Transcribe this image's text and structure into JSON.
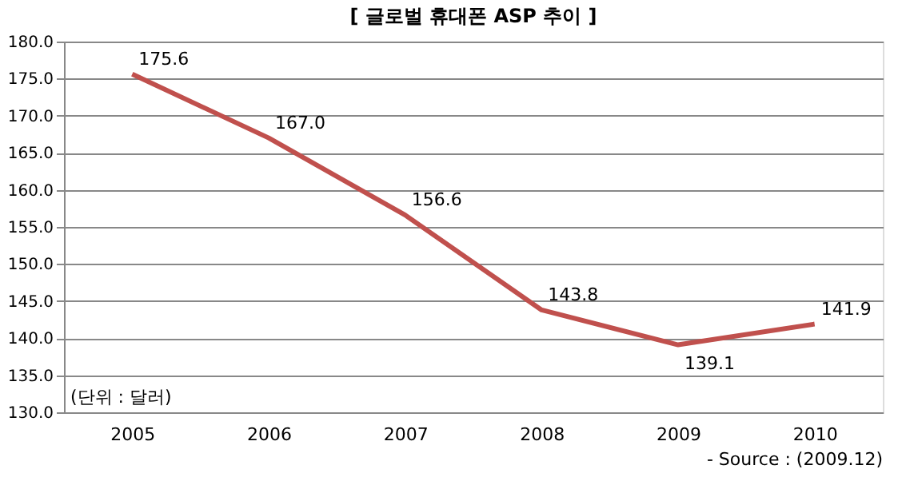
{
  "chart_data": {
    "type": "line",
    "title": "[ 글로벌 휴대폰 ASP 추이 ]",
    "categories": [
      "2005",
      "2006",
      "2007",
      "2008",
      "2009",
      "2010"
    ],
    "series": [
      {
        "color": "#c0504d",
        "values": [
          175.6,
          167.0,
          156.6,
          143.8,
          139.1,
          141.9
        ],
        "value_labels": [
          "175.6",
          "167.0",
          "156.6",
          "143.8",
          "139.1",
          "141.9"
        ]
      }
    ],
    "ylim": [
      130,
      180
    ],
    "yticks": [
      {
        "value": 130,
        "label": "130.0"
      },
      {
        "value": 135,
        "label": "135.0"
      },
      {
        "value": 140,
        "label": "140.0"
      },
      {
        "value": 145,
        "label": "145.0"
      },
      {
        "value": 150,
        "label": "150.0"
      },
      {
        "value": 155,
        "label": "155.0"
      },
      {
        "value": 160,
        "label": "160.0"
      },
      {
        "value": 165,
        "label": "165.0"
      },
      {
        "value": 170,
        "label": "170.0"
      },
      {
        "value": 175,
        "label": "175.0"
      },
      {
        "value": 180,
        "label": "180.0"
      }
    ],
    "grid": "y",
    "marker": "none",
    "line_style": "solid",
    "annotations": [
      "(단위 : 달러)",
      "- Source : (2009.12)"
    ]
  }
}
